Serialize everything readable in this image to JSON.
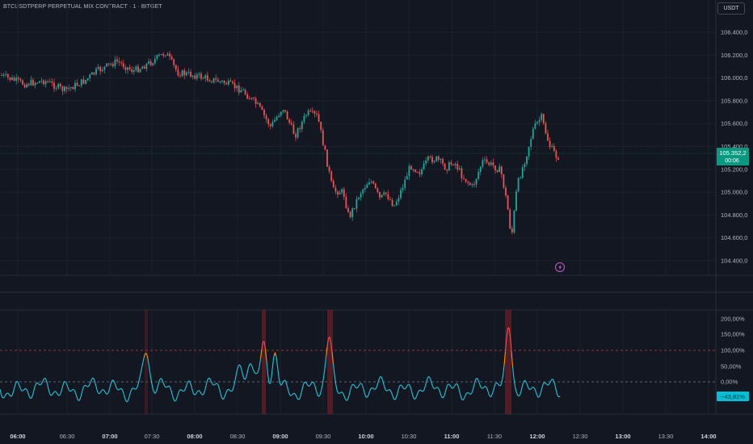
{
  "header": {
    "symbol_title": "BTCUSDTPERP PERPETUAL MIX CONTRACT · 1 · BITGET",
    "currency_button": "USDT"
  },
  "price_axis": {
    "labels": [
      "106.400,0",
      "106.200,0",
      "106.000,0",
      "105.800,0",
      "105.600,0",
      "105.400,0",
      "105.200,0",
      "105.000,0",
      "104.800,0",
      "104.600,0",
      "104.400,0"
    ],
    "current_price": "105.352,2",
    "countdown": "00:06",
    "current_price_color": "#089981"
  },
  "oscillator_axis": {
    "labels": [
      "200,00%",
      "150,00%",
      "100,00%",
      "50,00%",
      "0,00%"
    ],
    "current_value": "−43,81%",
    "current_value_color": "#00bcd4"
  },
  "time_axis": {
    "labels": [
      "06:00",
      "06:30",
      "07:00",
      "07:30",
      "08:00",
      "08:30",
      "09:00",
      "09:30",
      "10:00",
      "10:30",
      "11:00",
      "11:30",
      "12:00",
      "12:30",
      "13:00",
      "13:30",
      "14:00"
    ],
    "bold": [
      true,
      false,
      true,
      false,
      true,
      false,
      true,
      false,
      true,
      false,
      true,
      false,
      true,
      false,
      true,
      false,
      true
    ]
  },
  "colors": {
    "up": "#26a69a",
    "down": "#ef5350",
    "osc": "#26c6da",
    "osc_hot": "#ff9800",
    "bg": "#131722",
    "grid": "#1e222d"
  },
  "chart_data": [
    {
      "type": "line",
      "series_kind": "candlestick",
      "x_label_times": [
        "06:00",
        "06:30",
        "07:00",
        "07:30",
        "08:00",
        "08:30",
        "09:00",
        "09:30",
        "10:00",
        "10:30",
        "11:00",
        "11:30",
        "12:00"
      ],
      "approx_close": [
        106040,
        105960,
        106130,
        106210,
        105980,
        105920,
        105700,
        105320,
        104900,
        105150,
        105280,
        104700,
        105420
      ],
      "y_range": [
        104350,
        106450
      ],
      "last_price": 105352.2
    },
    {
      "type": "line",
      "series_kind": "oscillator_percent",
      "y_range": [
        -60,
        220
      ],
      "reference_lines": [
        100,
        0
      ],
      "peaks": [
        100,
        110,
        140,
        190
      ],
      "last_value": -43.81
    }
  ]
}
